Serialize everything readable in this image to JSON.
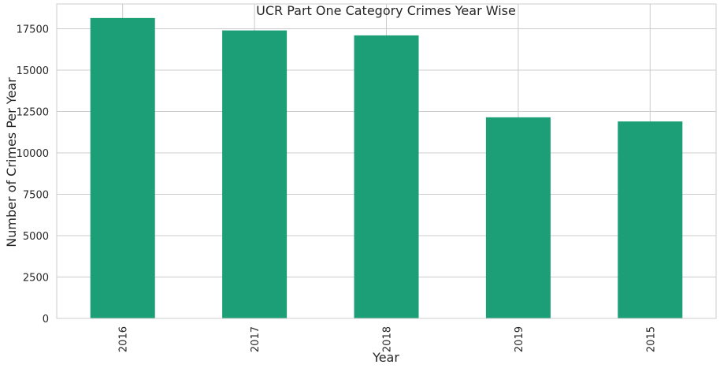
{
  "chart_data": {
    "type": "bar",
    "title": "UCR Part One Category Crimes Year Wise",
    "xlabel": "Year",
    "ylabel": "Number of Crimes Per Year",
    "categories": [
      "2016",
      "2017",
      "2018",
      "2019",
      "2015"
    ],
    "values": [
      18150,
      17400,
      17100,
      12150,
      11900
    ],
    "ylim": [
      0,
      19000
    ],
    "yticks": [
      0,
      2500,
      5000,
      7500,
      10000,
      12500,
      15000,
      17500
    ],
    "grid": true,
    "x_tick_rotation": "vertical",
    "bar_color": "#1c9e77",
    "grid_color": "#cccccc"
  }
}
